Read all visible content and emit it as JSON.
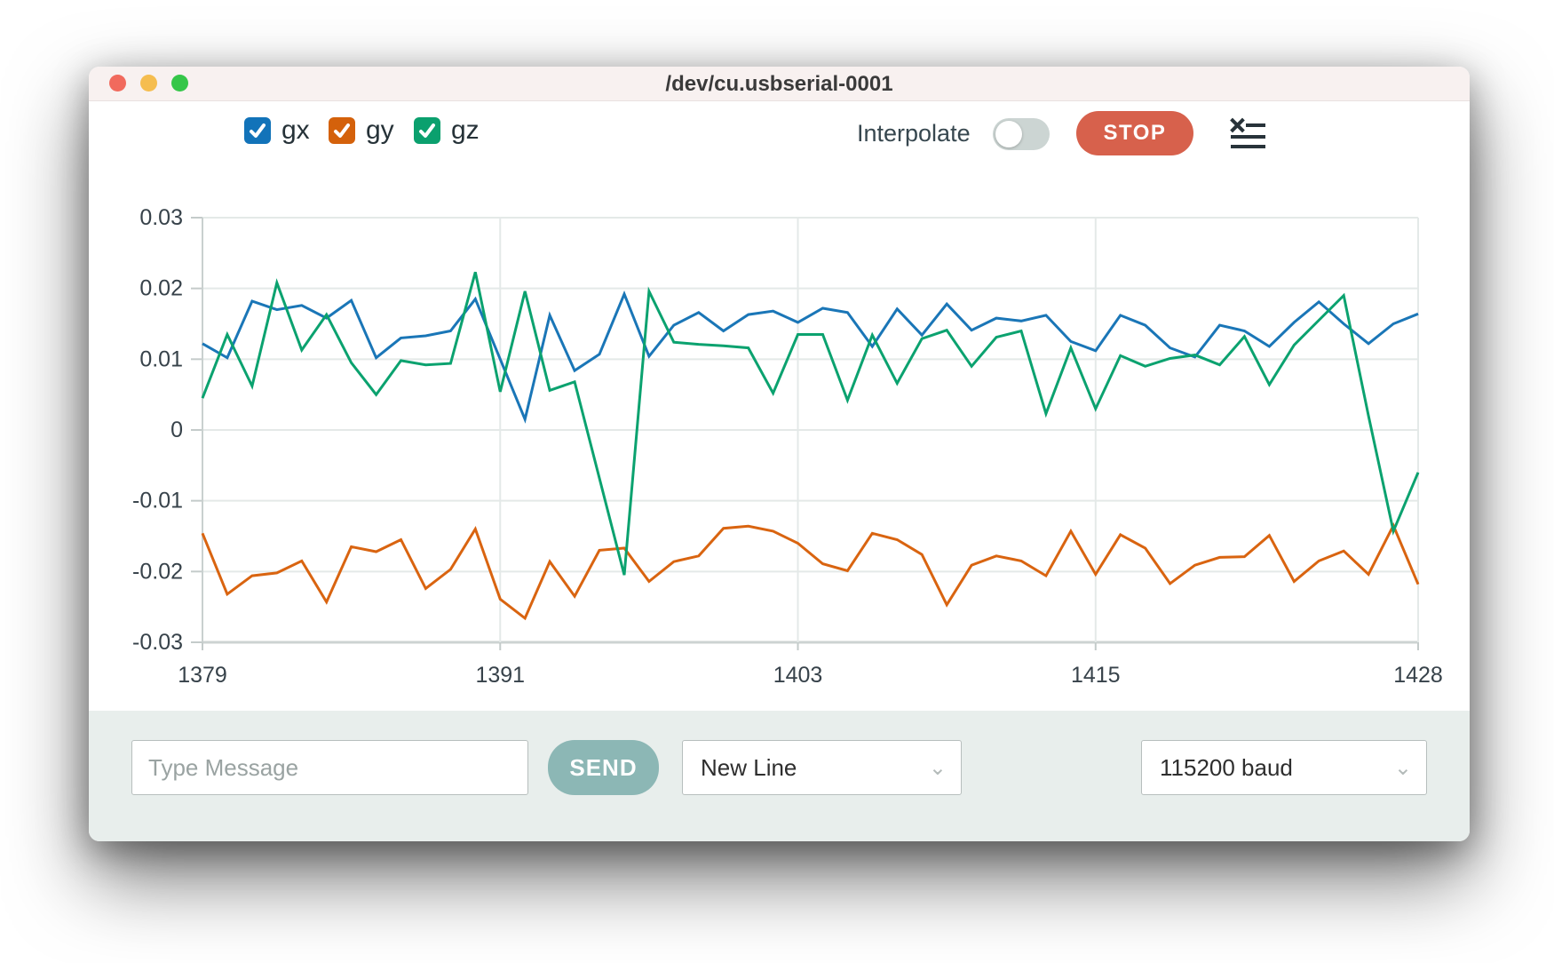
{
  "window": {
    "title": "/dev/cu.usbserial-0001"
  },
  "traffic_lights": {
    "close_color": "#f16a5d",
    "minimize_color": "#f5bd4f",
    "zoom_color": "#35c649"
  },
  "legend": {
    "items": [
      {
        "label": "gx",
        "color": "#1273b9",
        "checked": true
      },
      {
        "label": "gy",
        "color": "#d4610b",
        "checked": true
      },
      {
        "label": "gz",
        "color": "#0ba06e",
        "checked": true
      }
    ]
  },
  "controls": {
    "interpolate_label": "Interpolate",
    "interpolate_on": false,
    "stop_label": "STOP",
    "stop_color": "#d7614c",
    "clear_icon": "clear-list-icon",
    "icon_color": "#28333a"
  },
  "chart_data": {
    "type": "line",
    "title": "",
    "xlabel": "",
    "ylabel": "",
    "x_range": [
      1379,
      1428
    ],
    "y_range": [
      -0.03,
      0.03
    ],
    "grid": true,
    "legend_position": "top-left-checkboxes",
    "x_ticks": [
      1379,
      1391,
      1403,
      1415,
      1428
    ],
    "y_ticks": [
      0.03,
      0.02,
      0.01,
      0,
      -0.01,
      -0.02,
      -0.03
    ],
    "y_tick_labels": [
      "0.03",
      "0.02",
      "0.01",
      "0",
      "-0.01",
      "-0.02",
      "-0.03"
    ],
    "x_start": 1379,
    "x_step": 1,
    "series": [
      {
        "name": "gx",
        "color": "#1a76b7",
        "values": [
          0.0122,
          0.0102,
          0.0182,
          0.017,
          0.0176,
          0.0158,
          0.0183,
          0.0102,
          0.013,
          0.0133,
          0.014,
          0.0185,
          0.01,
          0.0015,
          0.0162,
          0.0084,
          0.0107,
          0.0192,
          0.0104,
          0.0148,
          0.0166,
          0.014,
          0.0163,
          0.0168,
          0.0152,
          0.0172,
          0.0166,
          0.0118,
          0.0171,
          0.0134,
          0.0178,
          0.0141,
          0.0158,
          0.0154,
          0.0162,
          0.0125,
          0.0112,
          0.0162,
          0.0148,
          0.0116,
          0.0103,
          0.0148,
          0.014,
          0.0118,
          0.0152,
          0.0181,
          0.015,
          0.0122,
          0.015,
          0.0164
        ]
      },
      {
        "name": "gy",
        "color": "#d96410",
        "values": [
          -0.0146,
          -0.0232,
          -0.0206,
          -0.0202,
          -0.0185,
          -0.0243,
          -0.0165,
          -0.0172,
          -0.0155,
          -0.0224,
          -0.0197,
          -0.014,
          -0.0239,
          -0.0266,
          -0.0186,
          -0.0235,
          -0.017,
          -0.0167,
          -0.0214,
          -0.0186,
          -0.0178,
          -0.0139,
          -0.0136,
          -0.0143,
          -0.016,
          -0.0189,
          -0.0199,
          -0.0146,
          -0.0155,
          -0.0176,
          -0.0247,
          -0.0191,
          -0.0178,
          -0.0185,
          -0.0206,
          -0.0143,
          -0.0204,
          -0.0148,
          -0.0167,
          -0.0217,
          -0.0191,
          -0.018,
          -0.0179,
          -0.0149,
          -0.0214,
          -0.0185,
          -0.0171,
          -0.0204,
          -0.0135,
          -0.0218
        ]
      },
      {
        "name": "gz",
        "color": "#0ba26f",
        "values": [
          0.0045,
          0.0135,
          0.0062,
          0.0208,
          0.0113,
          0.0163,
          0.0095,
          0.005,
          0.0098,
          0.0092,
          0.0094,
          0.0223,
          0.0054,
          0.0196,
          0.0056,
          0.0068,
          -0.0068,
          -0.0205,
          0.0196,
          0.0124,
          0.0121,
          0.0119,
          0.0116,
          0.0052,
          0.0135,
          0.0135,
          0.0042,
          0.0134,
          0.0066,
          0.0129,
          0.0141,
          0.009,
          0.0131,
          0.014,
          0.0023,
          0.0116,
          0.003,
          0.0105,
          0.009,
          0.0101,
          0.0106,
          0.0092,
          0.0132,
          0.0064,
          0.012,
          0.0155,
          0.019,
          0.002,
          -0.0143,
          -0.006
        ]
      }
    ]
  },
  "footer": {
    "message_placeholder": "Type Message",
    "send_label": "SEND",
    "send_color": "#8cb7b5",
    "line_ending_value": "New Line",
    "baud_value": "115200 baud"
  }
}
